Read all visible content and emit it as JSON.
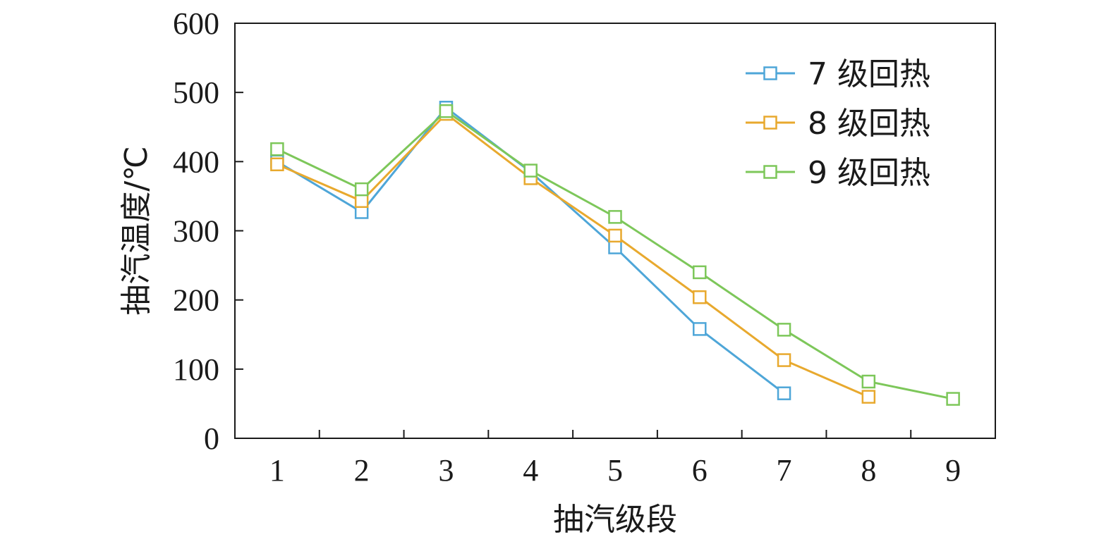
{
  "chart_data": {
    "type": "line",
    "title": "",
    "xlabel": "抽汽级段",
    "ylabel": "抽汽温度/℃",
    "x": [
      1,
      2,
      3,
      4,
      5,
      6,
      7,
      8,
      9
    ],
    "xlim": [
      0.5,
      9.5
    ],
    "ylim": [
      0,
      600
    ],
    "yticks": [
      0,
      100,
      200,
      300,
      400,
      500,
      600
    ],
    "grid": false,
    "legend_position": "top-right",
    "series": [
      {
        "name": "7 级回热",
        "color": "#4ea6d8",
        "marker": "square-open",
        "x": [
          1,
          2,
          3,
          4,
          5,
          6,
          7
        ],
        "values": [
          400,
          327,
          478,
          385,
          276,
          158,
          65
        ]
      },
      {
        "name": "8 级回热",
        "color": "#e8a92e",
        "marker": "square-open",
        "x": [
          1,
          2,
          3,
          4,
          5,
          6,
          7,
          8
        ],
        "values": [
          396,
          343,
          469,
          376,
          293,
          204,
          113,
          60
        ]
      },
      {
        "name": "9 级回热",
        "color": "#7dc75a",
        "marker": "square-open",
        "x": [
          1,
          2,
          3,
          4,
          5,
          6,
          7,
          8,
          9
        ],
        "values": [
          418,
          360,
          473,
          387,
          320,
          240,
          157,
          82,
          57
        ]
      }
    ]
  }
}
